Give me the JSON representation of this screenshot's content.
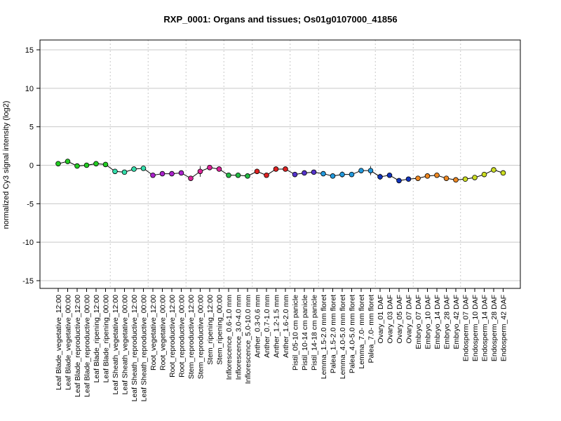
{
  "chart_data": {
    "type": "scatter",
    "title": "RXP_0001: Organs and tissues; Os01g0107000_41856",
    "ylabel": "normalized Cy3 signal intensity (log2)",
    "xlabel": "",
    "ylim": [
      -15,
      15
    ],
    "yticks": [
      -15,
      -10,
      -5,
      0,
      5,
      10,
      15
    ],
    "grid": "horizontal gridlines at y ticks; dotted vertical separators between tissue groups",
    "legend": "none",
    "categories": [
      "Leaf Blade_vegetative_12:00",
      "Leaf Blade_vegetative_00:00",
      "Leaf Blade_reproductive_12:00",
      "Leaf Blade_reproductive_00:00",
      "Leaf Blade_ripening_12:00",
      "Leaf Blade_ripening_00:00",
      "Leaf Sheath_vegetative_12:00",
      "Leaf Sheath_vegetative_00:00",
      "Leaf Sheath_reproductive_12:00",
      "Leaf Sheath_reproductive_00:00",
      "Root_vegetative_12:00",
      "Root_vegetative_00:00",
      "Root_reproductive_12:00",
      "Root_reproductive_00:00",
      "Stem_reproductive_12:00",
      "Stem_reproductive_00:00",
      "Stem_ripening_12:00",
      "Stem_ripening_00:00",
      "Inflorescence_0.6-1.0 mm",
      "Inflorescence_3.0-4.0 mm",
      "Inflorescence_5.0-10.0 mm",
      "Anther_0.3-0.6 mm",
      "Anther_0.7-1.0 mm",
      "Anther_1.2-1.5 mm",
      "Anther_1.6-2.0 mm",
      "Pistil_05-10 cm panicle",
      "Pistil_10-14 cm panicle",
      "Pistil_14-18 cm panicle",
      "Lemma_1.5-2.0 mm floret",
      "Palea_1.5-2.0 mm floret",
      "Lemma_4.0-5.0 mm floret",
      "Palea_4.0-5.0 mm floret",
      "Lemma_7.0- mm floret",
      "Palea_7.0- mm floret",
      "Ovary_01 DAF",
      "Ovary_03 DAF",
      "Ovary_05 DAF",
      "Ovary_07 DAF",
      "Embryo_07 DAF",
      "Embryo_10 DAF",
      "Embryo_14 DAF",
      "Embryo_28 DAF",
      "Embryo_42 DAF",
      "Endosperm_07 DAF",
      "Endosperm_10 DAF",
      "Endosperm_14 DAF",
      "Endosperm_28 DAF",
      "Endosperm_42 DAF"
    ],
    "values": [
      0.2,
      0.5,
      -0.1,
      0.0,
      0.2,
      0.1,
      -0.8,
      -0.9,
      -0.5,
      -0.4,
      -1.3,
      -1.1,
      -1.1,
      -1.0,
      -1.7,
      -0.8,
      -0.3,
      -0.5,
      -1.3,
      -1.3,
      -1.4,
      -0.8,
      -1.3,
      -0.5,
      -0.5,
      -1.2,
      -1.0,
      -0.9,
      -1.1,
      -1.4,
      -1.2,
      -1.2,
      -0.7,
      -0.7,
      -1.5,
      -1.3,
      -2.0,
      -1.8,
      -1.7,
      -1.4,
      -1.3,
      -1.7,
      -1.9,
      -1.8,
      -1.6,
      -1.2,
      -0.6,
      -1.0
    ],
    "errors": [
      0,
      0,
      0,
      0,
      0,
      0,
      0,
      0,
      0,
      0,
      0,
      0,
      0,
      0,
      0.2,
      0.7,
      0,
      0,
      0,
      0,
      0,
      0,
      0,
      0,
      0,
      0.2,
      0,
      0,
      0.3,
      0.2,
      0.4,
      0.3,
      0.2,
      0.6,
      0.4,
      0.2,
      0,
      0,
      0,
      0,
      0,
      0,
      0,
      0,
      0,
      0,
      0,
      0
    ],
    "point_colors": [
      "#22cc22",
      "#22cc22",
      "#22cc22",
      "#22cc22",
      "#22cc22",
      "#22cc22",
      "#33ddaa",
      "#33ddaa",
      "#33ddaa",
      "#33ddaa",
      "#aa22cc",
      "#aa22cc",
      "#aa22cc",
      "#aa22cc",
      "#dd2299",
      "#dd2299",
      "#dd2299",
      "#dd2299",
      "#22bb44",
      "#22bb44",
      "#22bb44",
      "#dd2222",
      "#dd2222",
      "#dd2222",
      "#dd2222",
      "#5533cc",
      "#5533cc",
      "#5533cc",
      "#2299dd",
      "#2299dd",
      "#2299dd",
      "#2299dd",
      "#2299dd",
      "#2299dd",
      "#1133bb",
      "#1133bb",
      "#1133bb",
      "#1133bb",
      "#ee8822",
      "#ee8822",
      "#ee8822",
      "#ee8822",
      "#ee8822",
      "#ccdd22",
      "#ccdd22",
      "#ccdd22",
      "#ccdd22",
      "#ccdd22"
    ],
    "group_separators_after_index": [
      5,
      9,
      13,
      17,
      20,
      24,
      27,
      33,
      37,
      42
    ],
    "colors": {
      "line": "#000000",
      "grid": "#c8c8c8",
      "separator": "#c8c8c8",
      "axis": "#000000"
    }
  }
}
